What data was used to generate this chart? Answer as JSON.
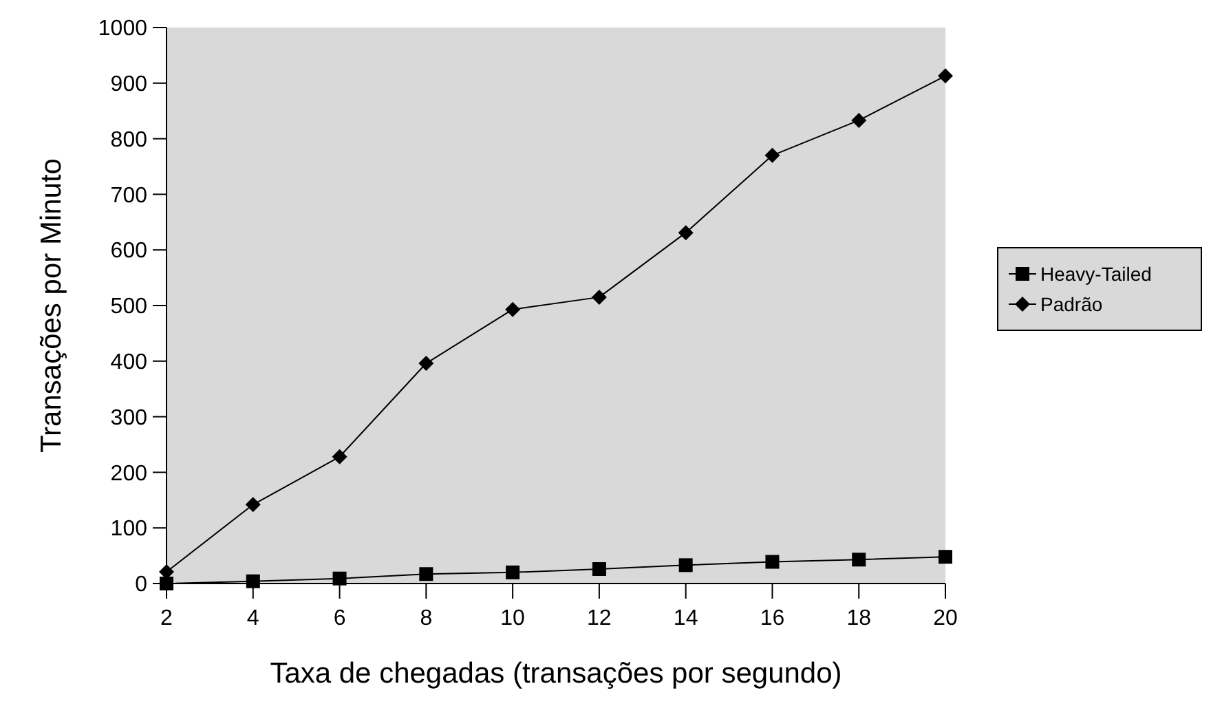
{
  "chart_data": {
    "type": "line",
    "xlabel": "Taxa de chegadas (transações por segundo)",
    "ylabel": "Transações por Minuto",
    "x": [
      2,
      4,
      6,
      8,
      10,
      12,
      14,
      16,
      18,
      20
    ],
    "xlim": [
      2,
      20
    ],
    "xticks": [
      2,
      4,
      6,
      8,
      10,
      12,
      14,
      16,
      18,
      20
    ],
    "ylim": [
      0,
      1000
    ],
    "yticks": [
      0,
      100,
      200,
      300,
      400,
      500,
      600,
      700,
      800,
      900,
      1000
    ],
    "grid": false,
    "legend": "right",
    "line_style": "solid",
    "series": [
      {
        "name": "Heavy-Tailed",
        "color": "#000000",
        "marker": "square",
        "values": [
          0,
          4,
          9,
          17,
          20,
          26,
          33,
          39,
          43,
          48
        ]
      },
      {
        "name": "Padrão",
        "color": "#000000",
        "marker": "diamond",
        "values": [
          21,
          142,
          228,
          396,
          493,
          515,
          631,
          770,
          833,
          913
        ]
      }
    ]
  }
}
